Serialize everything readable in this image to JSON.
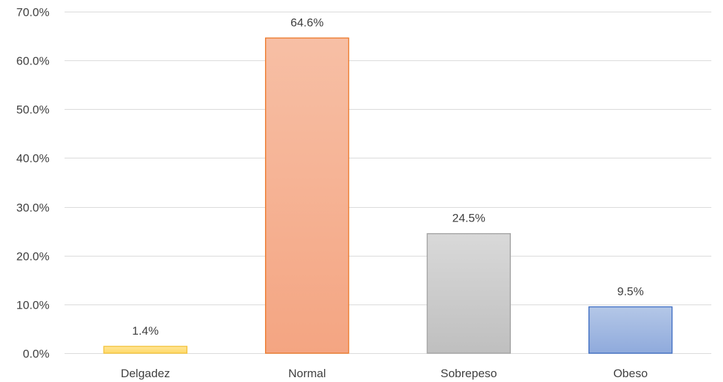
{
  "chart_data": {
    "type": "bar",
    "title": "",
    "xlabel": "",
    "ylabel": "",
    "categories": [
      "Delgadez",
      "Normal",
      "Sobrepeso",
      "Obeso"
    ],
    "values": [
      1.4,
      64.6,
      24.5,
      9.5
    ],
    "value_labels": [
      "1.4%",
      "64.6%",
      "24.5%",
      "9.5%"
    ],
    "ylim": [
      0,
      70
    ],
    "yticks": [
      0,
      10,
      20,
      30,
      40,
      50,
      60,
      70
    ],
    "ytick_labels": [
      "0.0%",
      "10.0%",
      "20.0%",
      "30.0%",
      "40.0%",
      "50.0%",
      "60.0%",
      "70.0%"
    ],
    "grid": true,
    "legend": "none",
    "bar_styles": [
      {
        "top": "#ffe599",
        "bottom": "#ffd966",
        "stroke": "#f4c542"
      },
      {
        "top": "#f7bfa5",
        "bottom": "#f4a582",
        "stroke": "#ed7d31"
      },
      {
        "top": "#d9d9d9",
        "bottom": "#bfbfbf",
        "stroke": "#a5a5a5"
      },
      {
        "top": "#b4c7e7",
        "bottom": "#8faadc",
        "stroke": "#4472c4"
      }
    ]
  }
}
